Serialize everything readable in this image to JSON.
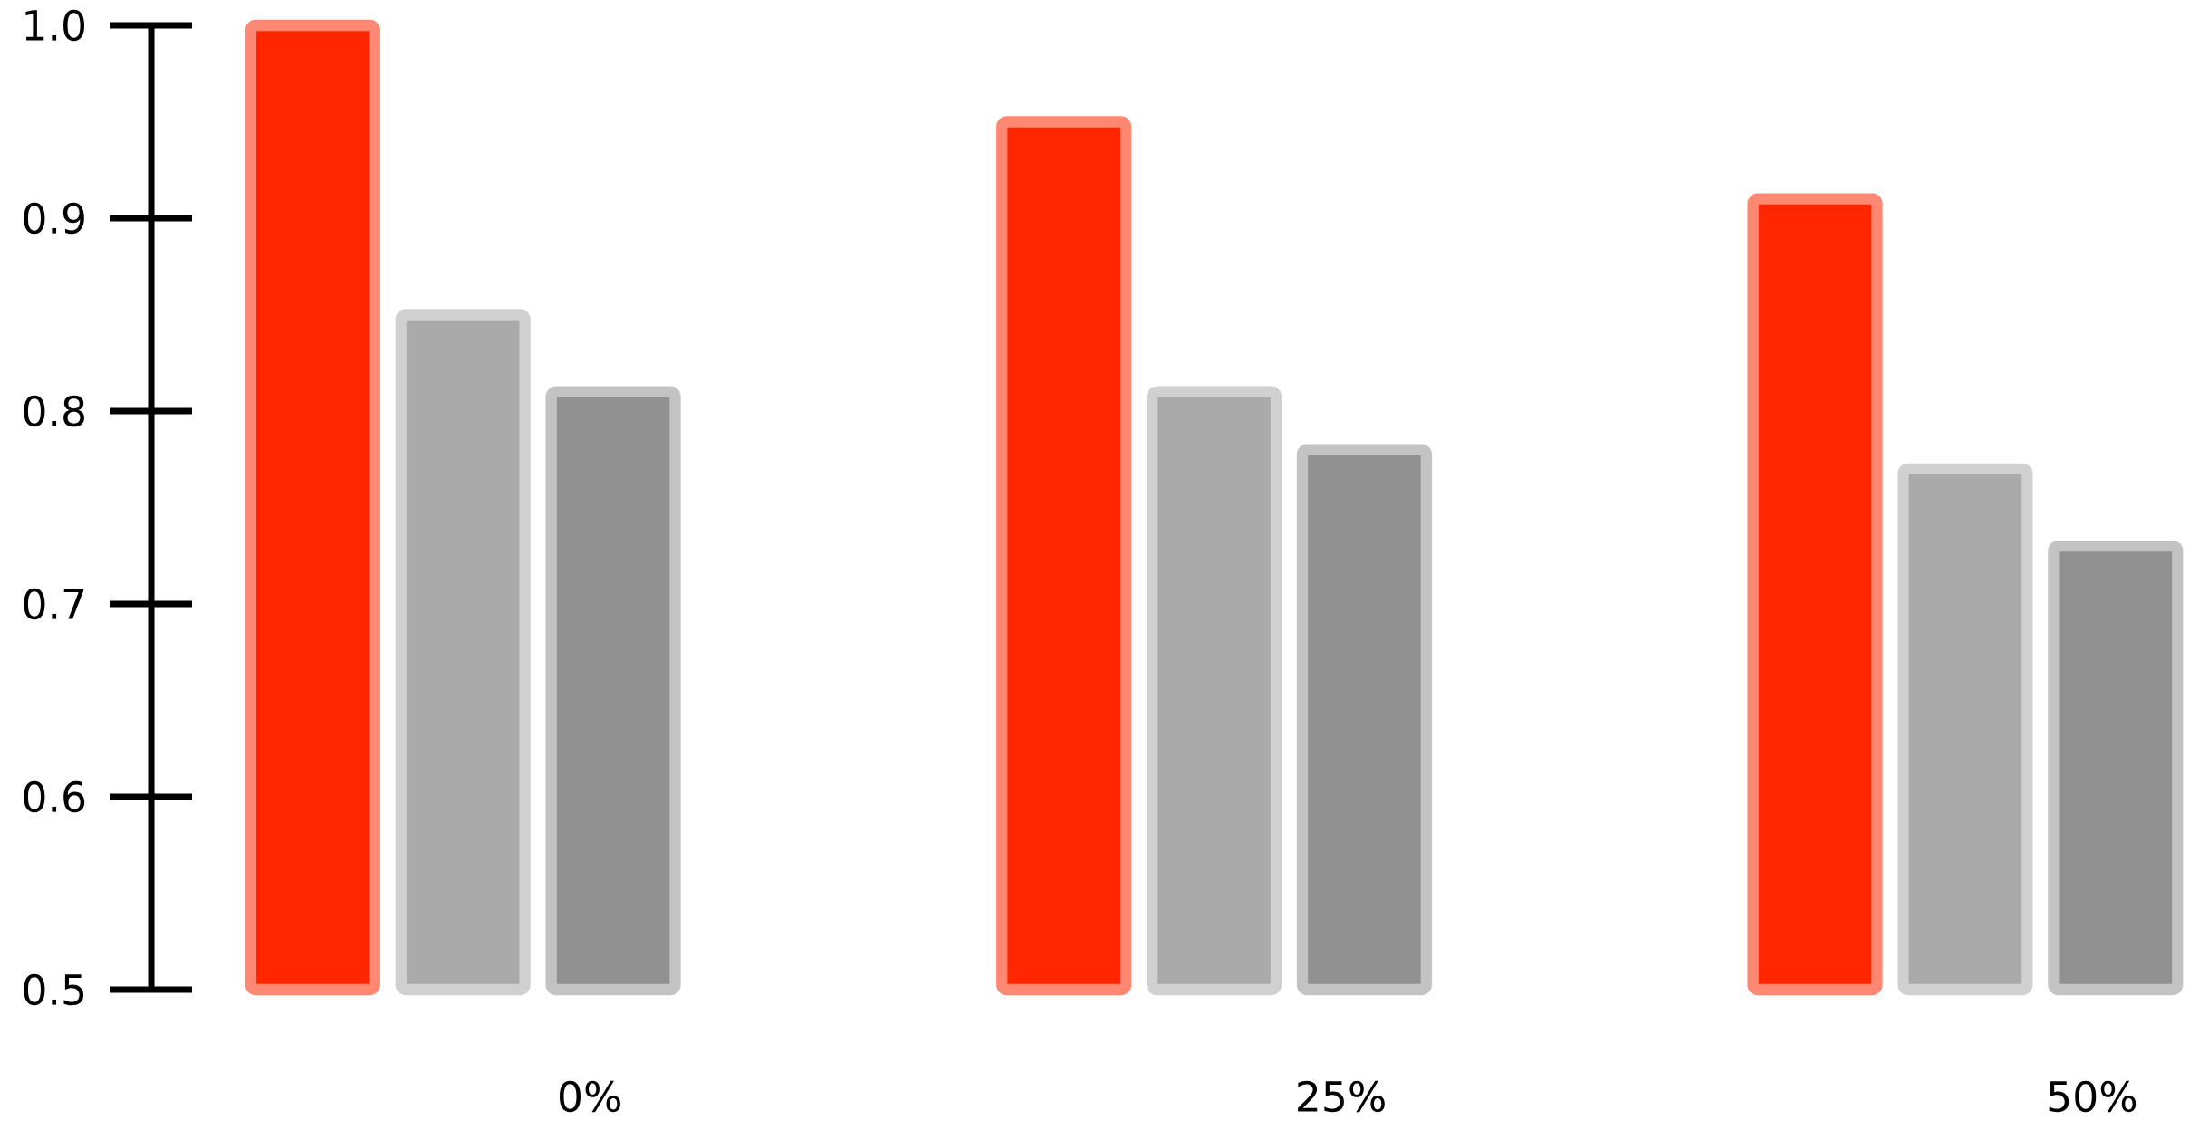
{
  "chart_data": {
    "type": "bar",
    "categories": [
      "0%",
      "25%",
      "50%"
    ],
    "series": [
      {
        "color": "#ff2600",
        "values": [
          1.0,
          0.95,
          0.91
        ]
      },
      {
        "color": "#aaaaaa",
        "values": [
          0.85,
          0.81,
          0.77
        ]
      },
      {
        "color": "#919191",
        "values": [
          0.81,
          0.78,
          0.73
        ]
      }
    ],
    "ylim": [
      0.5,
      1.0
    ],
    "yticks": [
      0.5,
      0.6,
      0.7,
      0.8,
      0.9,
      {
        "value": 1.0,
        "label": "1.0"
      }
    ]
  }
}
